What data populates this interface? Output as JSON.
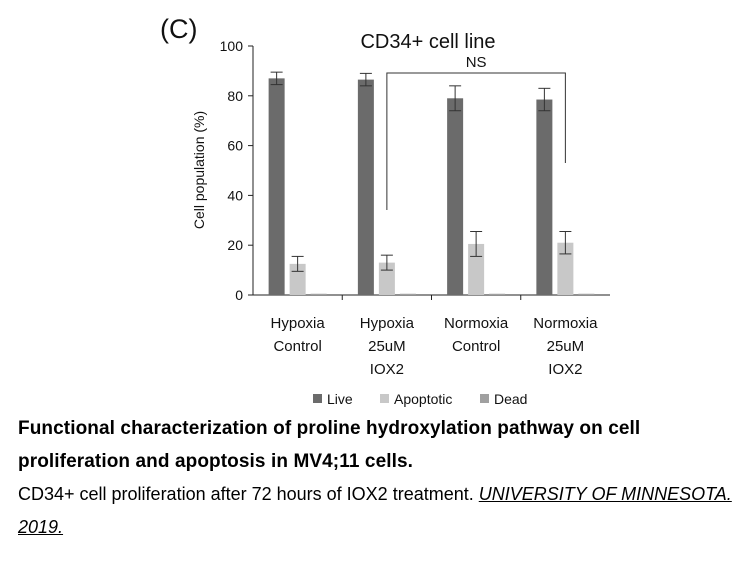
{
  "panel_label": "(C)",
  "chart_data": {
    "type": "bar",
    "title": "CD34+ cell line",
    "ylabel": "Cell population (%)",
    "xlabel": "",
    "ylim": [
      0,
      100
    ],
    "yticks": [
      0,
      20,
      40,
      60,
      80,
      100
    ],
    "categories": [
      [
        "Hypoxia",
        "Control"
      ],
      [
        "Hypoxia",
        "25uM",
        "IOX2"
      ],
      [
        "Normoxia",
        "Control"
      ],
      [
        "Normoxia",
        "25uM",
        "IOX2"
      ]
    ],
    "series": [
      {
        "name": "Live",
        "color": "#6b6b6b",
        "values": [
          87,
          86.5,
          79,
          78.5
        ],
        "errors": [
          2.5,
          2.5,
          5,
          4.5
        ]
      },
      {
        "name": "Apoptotic",
        "color": "#c8c8c8",
        "values": [
          12.5,
          13,
          20.5,
          21
        ],
        "errors": [
          3,
          3,
          5,
          4.5
        ]
      },
      {
        "name": "Dead",
        "color": "#a0a0a0",
        "values": [
          0.5,
          0.5,
          0.5,
          0.5
        ],
        "errors": [
          0,
          0,
          0,
          0
        ]
      }
    ],
    "annotation": {
      "text": "NS",
      "from_category": 1,
      "to_category": 3
    },
    "legend": {
      "placement": "bottom"
    }
  },
  "caption": {
    "title": "Functional characterization of proline hydroxylation pathway on cell proliferation and apoptosis in MV4;11 cells.",
    "text": "CD34+ cell proliferation after 72 hours of IOX2 treatment.",
    "source": "UNIVERSITY OF MINNESOTA. 2019."
  }
}
